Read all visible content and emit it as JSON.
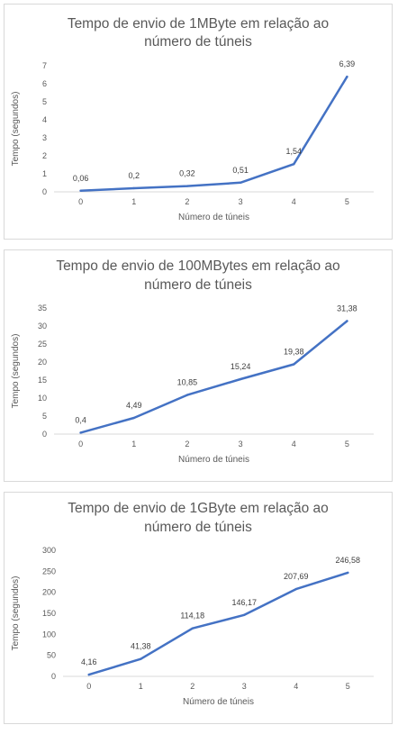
{
  "chart_data": [
    {
      "type": "line",
      "title": "Tempo de envio de 1MByte em relação ao número de túneis",
      "title_lines": [
        "Tempo de envio de 1MByte em relação ao",
        "número de túneis"
      ],
      "xlabel": "Número de túneis",
      "ylabel": "Tempo (segundos)",
      "x": [
        0,
        1,
        2,
        3,
        4,
        5
      ],
      "yticks": [
        0,
        1,
        2,
        3,
        4,
        5,
        6,
        7
      ],
      "ylim": [
        0,
        7
      ],
      "values": [
        0.06,
        0.2,
        0.32,
        0.51,
        1.54,
        6.39
      ],
      "data_labels": [
        "0,06",
        "0,2",
        "0,32",
        "0,51",
        "1,54",
        "6,39"
      ],
      "line_color": "#4472c4",
      "grid": false
    },
    {
      "type": "line",
      "title": "Tempo de envio de 100MBytes em relação ao número de túneis",
      "title_lines": [
        "Tempo de envio de 100MBytes em relação ao",
        "número de túneis"
      ],
      "xlabel": "Número de túneis",
      "ylabel": "Tempo (segundos)",
      "x": [
        0,
        1,
        2,
        3,
        4,
        5
      ],
      "yticks": [
        0,
        5,
        10,
        15,
        20,
        25,
        30,
        35
      ],
      "ylim": [
        0,
        35
      ],
      "values": [
        0.4,
        4.49,
        10.85,
        15.24,
        19.38,
        31.38
      ],
      "data_labels": [
        "0,4",
        "4,49",
        "10,85",
        "15,24",
        "19,38",
        "31,38"
      ],
      "line_color": "#4472c4",
      "grid": false
    },
    {
      "type": "line",
      "title": "Tempo de envio de 1GByte em relação ao número de túneis",
      "title_lines": [
        "Tempo de envio de 1GByte em relação ao",
        "número de túneis"
      ],
      "xlabel": "Número de túneis",
      "ylabel": "Tempo (segundos)",
      "x": [
        0,
        1,
        2,
        3,
        4,
        5
      ],
      "yticks": [
        0,
        50,
        100,
        150,
        200,
        250,
        300
      ],
      "ylim": [
        0,
        300
      ],
      "values": [
        4.16,
        41.38,
        114.18,
        146.17,
        207.69,
        246.58
      ],
      "data_labels": [
        "4,16",
        "41,38",
        "114,18",
        "146,17",
        "207,69",
        "246,58"
      ],
      "line_color": "#4472c4",
      "grid": false
    }
  ]
}
